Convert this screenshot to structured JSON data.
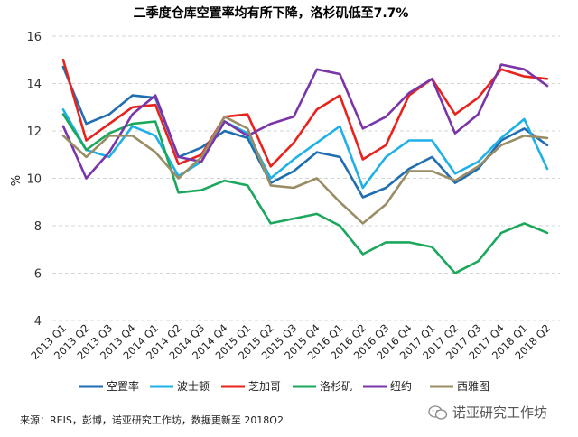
{
  "chart_data": {
    "type": "line",
    "title": "二季度仓库空置率均有所下降，洛杉矶低至7.7%",
    "xlabel": "",
    "ylabel": "%",
    "ylim": [
      4,
      16
    ],
    "yticks": [
      "4",
      "6",
      "8",
      "10",
      "12",
      "14",
      "16"
    ],
    "grid": "horizontal dashed",
    "legend_position": "bottom",
    "categories": [
      "2013 Q1",
      "2013 Q2",
      "2013 Q3",
      "2013 Q4",
      "2014 Q1",
      "2014 Q2",
      "2014 Q3",
      "2014 Q4",
      "2015 Q1",
      "2015 Q2",
      "2015 Q3",
      "2015 Q4",
      "2016 Q1",
      "2016 Q2",
      "2016 Q3",
      "2016 Q4",
      "2017 Q1",
      "2017 Q2",
      "2017 Q3",
      "2017 Q4",
      "2018 Q1",
      "2018 Q2"
    ],
    "series": [
      {
        "name": "空置率",
        "color": "#1f6eb2",
        "values": [
          14.7,
          12.3,
          12.7,
          13.5,
          13.4,
          10.9,
          11.3,
          12.0,
          11.7,
          9.8,
          10.3,
          11.1,
          10.9,
          9.2,
          9.6,
          10.4,
          10.9,
          9.8,
          10.4,
          11.6,
          12.1,
          11.4
        ]
      },
      {
        "name": "波士顿",
        "color": "#1fb0e8",
        "values": [
          12.9,
          11.2,
          10.9,
          12.2,
          11.8,
          10.1,
          10.7,
          12.4,
          11.9,
          10.0,
          10.8,
          11.5,
          12.2,
          9.6,
          10.9,
          11.6,
          11.6,
          10.2,
          10.7,
          11.7,
          12.5,
          10.4
        ]
      },
      {
        "name": "芝加哥",
        "color": "#e8221c",
        "values": [
          15.0,
          11.6,
          12.3,
          13.0,
          13.1,
          10.6,
          11.0,
          12.6,
          12.7,
          10.5,
          11.5,
          12.9,
          13.5,
          10.8,
          11.4,
          13.5,
          14.2,
          12.7,
          13.4,
          14.6,
          14.3,
          14.2
        ]
      },
      {
        "name": "洛杉矶",
        "color": "#1ba85c",
        "values": [
          12.7,
          11.2,
          11.9,
          12.3,
          12.4,
          9.4,
          9.5,
          9.9,
          9.7,
          8.1,
          8.3,
          8.5,
          8.0,
          6.8,
          7.3,
          7.3,
          7.1,
          6.0,
          6.5,
          7.7,
          8.1,
          7.7
        ]
      },
      {
        "name": "纽约",
        "color": "#7a35a8",
        "values": [
          12.2,
          10.0,
          11.1,
          12.7,
          13.5,
          10.9,
          10.7,
          12.4,
          11.8,
          12.3,
          12.6,
          14.6,
          14.4,
          12.1,
          12.6,
          13.6,
          14.2,
          11.9,
          12.7,
          14.8,
          14.6,
          13.9
        ]
      },
      {
        "name": "西雅图",
        "color": "#998d66",
        "values": [
          11.8,
          10.9,
          11.8,
          11.8,
          11.1,
          10.0,
          10.9,
          12.6,
          12.1,
          9.7,
          9.6,
          10.0,
          9.0,
          8.1,
          8.9,
          10.3,
          10.3,
          9.9,
          10.5,
          11.4,
          11.8,
          11.7
        ]
      }
    ]
  },
  "footer": {
    "source": "来源：REIS，彭博，诺亚研究工作坊，数据更新至 2018Q2",
    "watermark": "诺亚研究工作坊"
  }
}
